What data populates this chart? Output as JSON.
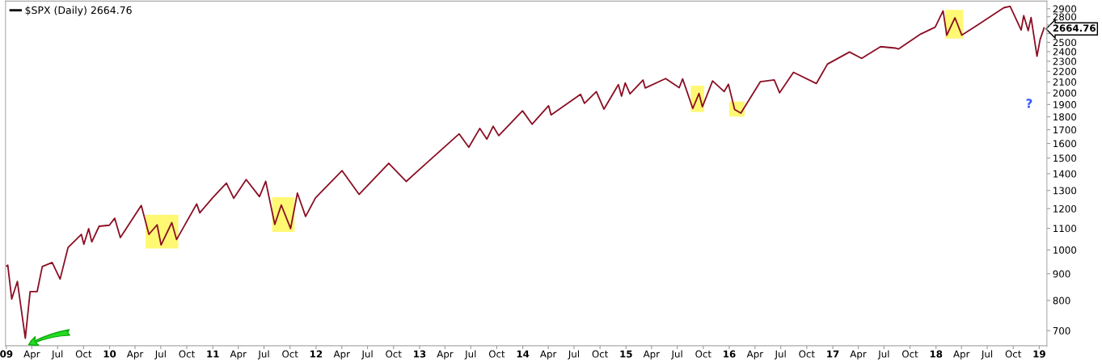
{
  "chart_data": {
    "type": "line",
    "x": [
      "2009-01-02",
      "2009-01-06",
      "2009-01-20",
      "2009-02-09",
      "2009-03-09",
      "2009-03-26",
      "2009-04-20",
      "2009-05-08",
      "2009-06-12",
      "2009-07-10",
      "2009-08-07",
      "2009-09-23",
      "2009-10-02",
      "2009-10-19",
      "2009-10-30",
      "2009-11-25",
      "2009-12-31",
      "2010-01-19",
      "2010-02-08",
      "2010-04-23",
      "2010-05-20",
      "2010-06-18",
      "2010-07-02",
      "2010-08-09",
      "2010-08-26",
      "2010-11-05",
      "2010-11-16",
      "2010-12-31",
      "2011-02-18",
      "2011-03-16",
      "2011-04-29",
      "2011-06-15",
      "2011-07-07",
      "2011-08-08",
      "2011-08-31",
      "2011-10-03",
      "2011-10-27",
      "2011-11-25",
      "2011-12-30",
      "2012-04-02",
      "2012-06-01",
      "2012-09-14",
      "2012-11-15",
      "2012-12-31",
      "2013-05-21",
      "2013-06-24",
      "2013-08-02",
      "2013-08-27",
      "2013-09-18",
      "2013-10-08",
      "2013-12-31",
      "2014-02-03",
      "2014-04-02",
      "2014-04-11",
      "2014-07-24",
      "2014-08-07",
      "2014-09-18",
      "2014-10-15",
      "2014-12-05",
      "2014-12-16",
      "2014-12-29",
      "2015-01-15",
      "2015-03-02",
      "2015-03-10",
      "2015-05-21",
      "2015-07-08",
      "2015-07-20",
      "2015-08-25",
      "2015-09-16",
      "2015-09-28",
      "2015-11-03",
      "2015-12-14",
      "2015-12-29",
      "2016-01-20",
      "2016-02-11",
      "2016-04-20",
      "2016-06-08",
      "2016-06-27",
      "2016-08-15",
      "2016-11-04",
      "2016-12-13",
      "2017-03-01",
      "2017-04-13",
      "2017-06-19",
      "2017-08-10",
      "2017-08-21",
      "2017-11-08",
      "2017-12-29",
      "2018-01-26",
      "2018-02-08",
      "2018-03-09",
      "2018-04-02",
      "2018-05-31",
      "2018-08-29",
      "2018-09-20",
      "2018-10-29",
      "2018-11-07",
      "2018-11-23",
      "2018-12-03",
      "2018-12-24",
      "2019-01-04",
      "2019-01-18"
    ],
    "series": [
      {
        "name": "$SPX (Daily) 2664.76",
        "color": "#8b0f24",
        "values": [
          931,
          935,
          805,
          870,
          677,
          832,
          832,
          929,
          946,
          879,
          1010,
          1071,
          1025,
          1098,
          1036,
          1110,
          1115,
          1150,
          1056,
          1217,
          1071,
          1117,
          1022,
          1128,
          1047,
          1225,
          1178,
          1258,
          1343,
          1256,
          1364,
          1265,
          1354,
          1119,
          1219,
          1099,
          1285,
          1159,
          1258,
          1419,
          1278,
          1466,
          1353,
          1426,
          1669,
          1573,
          1710,
          1631,
          1726,
          1656,
          1848,
          1742,
          1890,
          1815,
          1988,
          1910,
          2011,
          1862,
          2075,
          1972,
          2090,
          1992,
          2117,
          2044,
          2131,
          2047,
          2128,
          1867,
          1995,
          1881,
          2109,
          2012,
          2078,
          1859,
          1829,
          2102,
          2119,
          2001,
          2190,
          2085,
          2271,
          2396,
          2329,
          2453,
          2438,
          2428,
          2594,
          2674,
          2873,
          2581,
          2787,
          2582,
          2705,
          2914,
          2931,
          2641,
          2814,
          2633,
          2790,
          2351,
          2532,
          2664.76
        ]
      }
    ],
    "log": "y",
    "ylim": [
      655,
      3000
    ],
    "yticks": [
      700,
      800,
      900,
      1000,
      1100,
      1200,
      1300,
      1400,
      1500,
      1600,
      1700,
      1800,
      1900,
      2000,
      2100,
      2200,
      2300,
      2400,
      2500,
      {
        "value": 2600,
        "label": null
      },
      {
        "value": 2664.76,
        "label": "2664.76"
      },
      {
        "value": 2700,
        "label": null
      },
      2800,
      2900
    ],
    "xlim": [
      "2008-12-29",
      "2019-01-28"
    ],
    "xticks": [
      {
        "value": "2009-01-01",
        "label": "09"
      },
      {
        "value": "2009-04-01",
        "label": "Apr"
      },
      {
        "value": "2009-07-01",
        "label": "Jul"
      },
      {
        "value": "2009-10-01",
        "label": "Oct"
      },
      {
        "value": "2010-01-01",
        "label": "10"
      },
      {
        "value": "2010-04-01",
        "label": "Apr"
      },
      {
        "value": "2010-07-01",
        "label": "Jul"
      },
      {
        "value": "2010-10-01",
        "label": "Oct"
      },
      {
        "value": "2011-01-01",
        "label": "11"
      },
      {
        "value": "2011-04-01",
        "label": "Apr"
      },
      {
        "value": "2011-07-01",
        "label": "Jul"
      },
      {
        "value": "2011-10-01",
        "label": "Oct"
      },
      {
        "value": "2012-01-01",
        "label": "12"
      },
      {
        "value": "2012-04-01",
        "label": "Apr"
      },
      {
        "value": "2012-07-01",
        "label": "Jul"
      },
      {
        "value": "2012-10-01",
        "label": "Oct"
      },
      {
        "value": "2013-01-01",
        "label": "13"
      },
      {
        "value": "2013-04-01",
        "label": "Apr"
      },
      {
        "value": "2013-07-01",
        "label": "Jul"
      },
      {
        "value": "2013-10-01",
        "label": "Oct"
      },
      {
        "value": "2014-01-01",
        "label": "14"
      },
      {
        "value": "2014-04-01",
        "label": "Apr"
      },
      {
        "value": "2014-07-01",
        "label": "Jul"
      },
      {
        "value": "2014-10-01",
        "label": "Oct"
      },
      {
        "value": "2015-01-01",
        "label": "15"
      },
      {
        "value": "2015-04-01",
        "label": "Apr"
      },
      {
        "value": "2015-07-01",
        "label": "Jul"
      },
      {
        "value": "2015-10-01",
        "label": "Oct"
      },
      {
        "value": "2016-01-01",
        "label": "16"
      },
      {
        "value": "2016-04-01",
        "label": "Apr"
      },
      {
        "value": "2016-07-01",
        "label": "Jul"
      },
      {
        "value": "2016-10-01",
        "label": "Oct"
      },
      {
        "value": "2017-01-01",
        "label": "17"
      },
      {
        "value": "2017-04-01",
        "label": "Apr"
      },
      {
        "value": "2017-07-01",
        "label": "Jul"
      },
      {
        "value": "2017-10-01",
        "label": "Oct"
      },
      {
        "value": "2018-01-01",
        "label": "18"
      },
      {
        "value": "2018-04-01",
        "label": "Apr"
      },
      {
        "value": "2018-07-01",
        "label": "Jul"
      },
      {
        "value": "2018-10-01",
        "label": "Oct"
      },
      {
        "value": "2019-01-01",
        "label": "19"
      }
    ],
    "bands": [
      {
        "axis": "x",
        "from": "2010-05-08",
        "to": "2010-09-01",
        "color": "#fff873"
      },
      {
        "axis": "x",
        "from": "2011-07-30",
        "to": "2011-10-17",
        "color": "#fff873"
      },
      {
        "axis": "x",
        "from": "2015-08-18",
        "to": "2015-10-04",
        "color": "#fff873"
      },
      {
        "axis": "x",
        "from": "2016-01-01",
        "to": "2016-02-24",
        "color": "#fff873"
      },
      {
        "axis": "x",
        "from": "2018-02-02",
        "to": "2018-04-07",
        "color": "#fff873"
      }
    ],
    "annotations": [
      "?"
    ],
    "legend": "top left",
    "grid": false,
    "marker": "none",
    "line_style": "solid"
  }
}
